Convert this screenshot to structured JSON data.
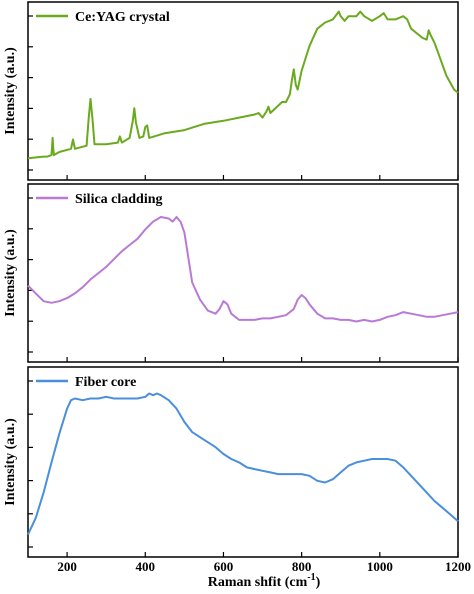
{
  "figure": {
    "xlabel": "Raman shfit (cm",
    "xlabel_sup": "-1",
    "xlabel_close": ")"
  },
  "colors": {
    "panel1": "#6aaa1e",
    "panel2": "#b97ad6",
    "panel3": "#4a8fdc"
  },
  "chart_data": [
    {
      "type": "line",
      "name": "Ce:YAG crystal",
      "ylabel": "Intensity (a.u.)",
      "xlim": [
        100,
        1200
      ],
      "xticks": [
        200,
        400,
        600,
        800,
        1000,
        1200
      ],
      "y_tick_count": 6,
      "ylim": [
        0,
        100
      ],
      "legend": "top-left",
      "x": [
        100,
        140,
        150,
        160,
        163,
        166,
        180,
        210,
        215,
        220,
        250,
        255,
        260,
        265,
        270,
        300,
        330,
        335,
        340,
        360,
        368,
        372,
        376,
        385,
        395,
        400,
        405,
        410,
        450,
        500,
        550,
        600,
        640,
        680,
        690,
        700,
        710,
        715,
        720,
        750,
        760,
        770,
        775,
        780,
        785,
        790,
        800,
        820,
        840,
        860,
        880,
        895,
        900,
        910,
        920,
        940,
        950,
        960,
        980,
        1000,
        1010,
        1020,
        1040,
        1060,
        1070,
        1080,
        1100,
        1110,
        1120,
        1125,
        1130,
        1140,
        1150,
        1170,
        1190,
        1200
      ],
      "y": [
        5,
        6,
        6,
        7,
        18,
        7,
        9,
        11,
        17,
        11,
        13,
        30,
        43,
        30,
        14,
        14,
        15,
        19,
        15,
        18,
        29,
        37,
        28,
        18,
        19,
        25,
        26,
        18,
        21,
        23,
        27,
        29,
        31,
        33,
        34,
        31,
        35,
        38,
        34,
        41,
        41,
        46,
        55,
        62,
        52,
        49,
        61,
        77,
        88,
        92,
        94,
        99,
        96,
        93,
        96,
        96,
        99,
        96,
        93,
        96,
        98,
        94,
        94,
        96,
        94,
        88,
        84,
        82,
        81,
        87,
        84,
        79,
        72,
        58,
        49,
        47
      ]
    },
    {
      "type": "line",
      "name": "Silica cladding",
      "ylabel": "Intensity (a.u.)",
      "xlim": [
        100,
        1200
      ],
      "y_tick_count": 6,
      "ylim": [
        0,
        100
      ],
      "legend": "top-left",
      "x": [
        100,
        120,
        140,
        160,
        180,
        200,
        220,
        240,
        260,
        280,
        300,
        320,
        340,
        360,
        380,
        400,
        420,
        440,
        460,
        470,
        480,
        490,
        500,
        510,
        520,
        540,
        560,
        580,
        590,
        600,
        610,
        620,
        640,
        660,
        680,
        700,
        720,
        740,
        760,
        780,
        790,
        800,
        810,
        820,
        840,
        860,
        880,
        900,
        920,
        940,
        960,
        980,
        1000,
        1020,
        1040,
        1060,
        1080,
        1100,
        1120,
        1140,
        1160,
        1180,
        1200
      ],
      "y": [
        40,
        35,
        30,
        29,
        30,
        32,
        35,
        39,
        44,
        48,
        52,
        57,
        62,
        66,
        70,
        76,
        81,
        84,
        83,
        81,
        84,
        81,
        74,
        58,
        42,
        31,
        24,
        22,
        25,
        30,
        28,
        22,
        18,
        18,
        18,
        19,
        19,
        20,
        21,
        25,
        31,
        34,
        32,
        28,
        22,
        19,
        19,
        18,
        18,
        17,
        18,
        17,
        18,
        20,
        21,
        23,
        22,
        21,
        20,
        20,
        21,
        22,
        23
      ]
    },
    {
      "type": "line",
      "name": "Fiber core",
      "ylabel": "Intensity (a.u.)",
      "xlim": [
        100,
        1200
      ],
      "y_tick_count": 6,
      "ylim": [
        0,
        100
      ],
      "legend": "top-left",
      "x": [
        100,
        120,
        140,
        160,
        180,
        200,
        210,
        220,
        240,
        260,
        280,
        300,
        320,
        340,
        360,
        380,
        400,
        410,
        420,
        430,
        440,
        460,
        480,
        500,
        520,
        540,
        560,
        580,
        600,
        620,
        640,
        660,
        680,
        700,
        720,
        740,
        760,
        780,
        800,
        820,
        840,
        860,
        880,
        900,
        920,
        940,
        960,
        980,
        1000,
        1020,
        1040,
        1060,
        1080,
        1100,
        1120,
        1140,
        1160,
        1180,
        1200
      ],
      "y": [
        5,
        15,
        30,
        48,
        65,
        80,
        85,
        86,
        85,
        86,
        86,
        87,
        86,
        86,
        86,
        86,
        87,
        89,
        88,
        89,
        88,
        85,
        80,
        72,
        66,
        63,
        60,
        57,
        53,
        50,
        48,
        45,
        44,
        43,
        42,
        41,
        41,
        41,
        41,
        40,
        37,
        36,
        38,
        42,
        46,
        48,
        49,
        50,
        50,
        50,
        49,
        45,
        40,
        35,
        30,
        25,
        21,
        17,
        13
      ]
    }
  ]
}
